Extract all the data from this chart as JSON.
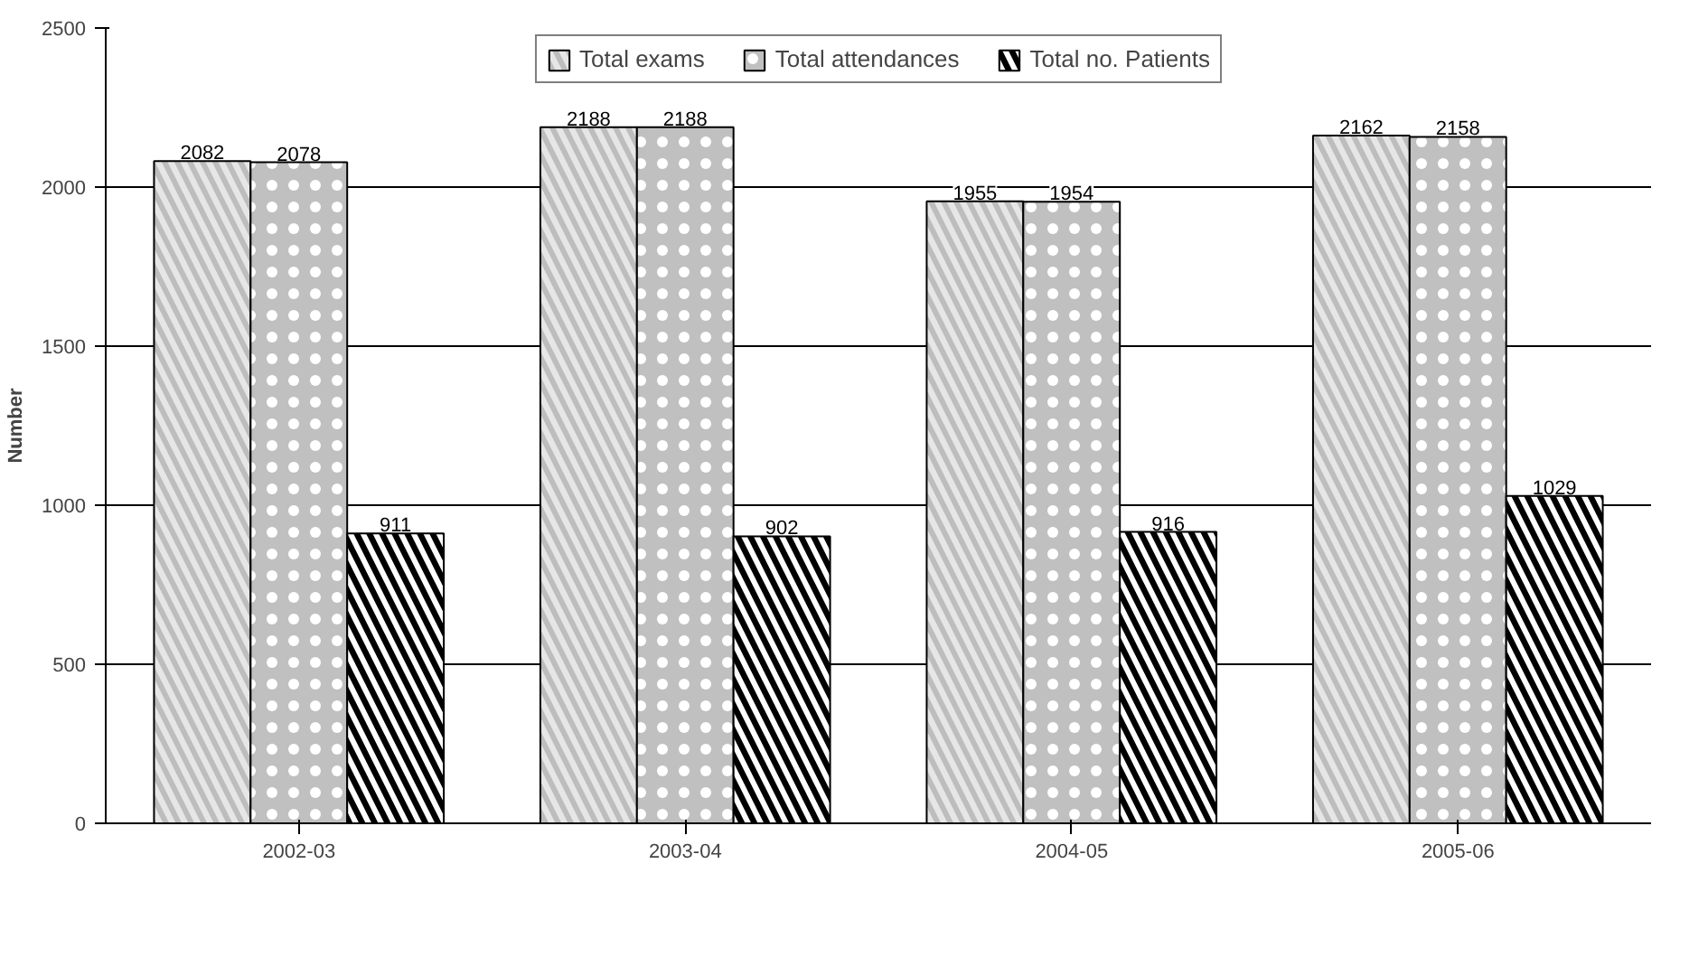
{
  "chart_data": {
    "type": "bar",
    "ylabel": "Number",
    "categories": [
      "2002-03",
      "2003-04",
      "2004-05",
      "2005-06"
    ],
    "series": [
      {
        "name": "Total exams",
        "color": "#e6e6e6",
        "values": [
          2082,
          2188,
          1955,
          2162
        ]
      },
      {
        "name": "Total attendances",
        "color": "#c0c0c0",
        "values": [
          2078,
          2188,
          1954,
          2158
        ]
      },
      {
        "name": "Total no. Patients",
        "color": "#000000",
        "values": [
          911,
          902,
          916,
          1029
        ]
      }
    ],
    "ylim": [
      0,
      2500
    ],
    "yticks": [
      0,
      500,
      1000,
      1500,
      2000,
      2500
    ],
    "grid": "y",
    "legend": "top",
    "data_labels": true
  }
}
